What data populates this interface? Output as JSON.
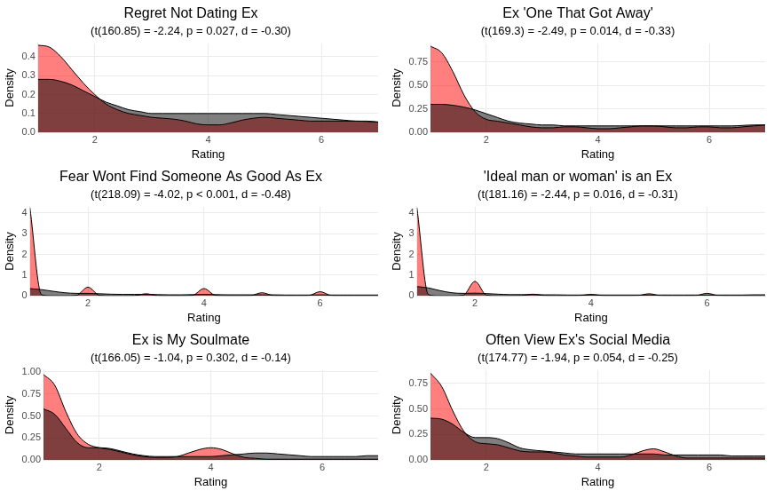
{
  "chart_data": [
    {
      "type": "area",
      "title": "Regret Not Dating Ex",
      "subtitle": "(t(160.85) = -2.24, p = 0.027, d = -0.30)",
      "x_label": "Rating",
      "y_label": "Density",
      "x": [
        1,
        1.2,
        1.4,
        1.6,
        1.8,
        2,
        2.2,
        2.4,
        2.6,
        2.8,
        3,
        3.2,
        3.4,
        3.6,
        3.8,
        4,
        4.2,
        4.4,
        4.6,
        4.8,
        5,
        5.2,
        5.4,
        5.6,
        5.8,
        6,
        6.2,
        6.4,
        6.6,
        6.8,
        7
      ],
      "series": [
        {
          "color": "#ff0000",
          "values": [
            0.46,
            0.45,
            0.4,
            0.33,
            0.26,
            0.2,
            0.15,
            0.12,
            0.1,
            0.09,
            0.08,
            0.075,
            0.07,
            0.06,
            0.045,
            0.04,
            0.04,
            0.05,
            0.065,
            0.075,
            0.08,
            0.075,
            0.07,
            0.065,
            0.06,
            0.06,
            0.06,
            0.06,
            0.06,
            0.058,
            0.055
          ]
        },
        {
          "color": "#000000",
          "values": [
            0.28,
            0.28,
            0.27,
            0.25,
            0.22,
            0.19,
            0.16,
            0.14,
            0.12,
            0.11,
            0.1,
            0.1,
            0.1,
            0.1,
            0.1,
            0.1,
            0.1,
            0.1,
            0.1,
            0.1,
            0.1,
            0.095,
            0.09,
            0.085,
            0.08,
            0.075,
            0.07,
            0.065,
            0.06,
            0.06,
            0.055
          ]
        }
      ],
      "xlim": [
        1,
        7
      ],
      "ylim": [
        0,
        0.47
      ],
      "xticks": [
        2,
        4,
        6
      ],
      "yticks": [
        {
          "value": 0,
          "label": "0.0"
        },
        0.1,
        0.2,
        0.3,
        0.4
      ],
      "grid": true
    },
    {
      "type": "area",
      "title": "Ex 'One That Got Away'",
      "subtitle": "(t(169.3) = -2.49, p = 0.014, d = -0.33)",
      "x_label": "Rating",
      "y_label": "Density",
      "x": [
        1,
        1.2,
        1.4,
        1.6,
        1.8,
        2,
        2.2,
        2.4,
        2.6,
        2.8,
        3,
        3.2,
        3.4,
        3.6,
        3.8,
        4,
        4.2,
        4.4,
        4.6,
        4.8,
        5,
        5.2,
        5.4,
        5.6,
        5.8,
        6,
        6.2,
        6.4,
        6.6,
        6.8,
        7
      ],
      "series": [
        {
          "color": "#ff0000",
          "values": [
            0.92,
            0.85,
            0.65,
            0.4,
            0.22,
            0.14,
            0.12,
            0.1,
            0.08,
            0.06,
            0.05,
            0.05,
            0.06,
            0.06,
            0.05,
            0.04,
            0.04,
            0.05,
            0.06,
            0.07,
            0.07,
            0.06,
            0.05,
            0.05,
            0.06,
            0.06,
            0.05,
            0.05,
            0.06,
            0.07,
            0.08
          ]
        },
        {
          "color": "#000000",
          "values": [
            0.3,
            0.3,
            0.29,
            0.27,
            0.24,
            0.2,
            0.16,
            0.12,
            0.1,
            0.09,
            0.08,
            0.08,
            0.07,
            0.07,
            0.07,
            0.07,
            0.07,
            0.07,
            0.07,
            0.07,
            0.07,
            0.07,
            0.07,
            0.07,
            0.07,
            0.07,
            0.07,
            0.07,
            0.075,
            0.08,
            0.08
          ]
        }
      ],
      "xlim": [
        1,
        7
      ],
      "ylim": [
        0,
        0.95
      ],
      "xticks": [
        2,
        4,
        6
      ],
      "yticks": [
        {
          "value": 0,
          "label": "0.00"
        },
        0.25,
        {
          "value": 0.5,
          "label": "0.50"
        },
        0.75
      ],
      "grid": true
    },
    {
      "type": "area",
      "title": "Fear Wont Find Someone As Good As Ex",
      "subtitle": "(t(218.09) = -4.02, p < 0.001, d = -0.48)",
      "x_label": "Rating",
      "y_label": "Density",
      "x": [
        1,
        1.2,
        1.4,
        1.6,
        1.8,
        2,
        2.2,
        2.4,
        2.6,
        2.8,
        3,
        3.2,
        3.4,
        3.6,
        3.8,
        4,
        4.2,
        4.4,
        4.6,
        4.8,
        5,
        5.2,
        5.4,
        5.6,
        5.8,
        6,
        6.2,
        6.4,
        6.6,
        6.8,
        7
      ],
      "series": [
        {
          "color": "#ff0000",
          "values": [
            4.25,
            0.05,
            0,
            0,
            0.02,
            0.42,
            0.02,
            0,
            0,
            0.01,
            0.1,
            0.01,
            0,
            0,
            0.02,
            0.35,
            0.02,
            0,
            0,
            0.01,
            0.15,
            0.01,
            0,
            0,
            0.01,
            0.2,
            0.01,
            0,
            0,
            0,
            0
          ]
        },
        {
          "color": "#000000",
          "values": [
            0.35,
            0.3,
            0.22,
            0.15,
            0.12,
            0.12,
            0.1,
            0.08,
            0.07,
            0.07,
            0.07,
            0.06,
            0.05,
            0.05,
            0.06,
            0.07,
            0.06,
            0.05,
            0.05,
            0.05,
            0.05,
            0.05,
            0.04,
            0.04,
            0.04,
            0.05,
            0.04,
            0.04,
            0.04,
            0.04,
            0.04
          ]
        }
      ],
      "xlim": [
        1,
        7
      ],
      "ylim": [
        0,
        4.3
      ],
      "xticks": [
        2,
        4,
        6
      ],
      "yticks": [
        0,
        1,
        2,
        3,
        4
      ],
      "grid": true
    },
    {
      "type": "area",
      "title": "'Ideal man or woman' is an Ex",
      "subtitle": "(t(181.16) = -2.44, p = 0.016, d = -0.31)",
      "x_label": "Rating",
      "y_label": "Density",
      "x": [
        1,
        1.2,
        1.4,
        1.6,
        1.8,
        2,
        2.2,
        2.4,
        2.6,
        2.8,
        3,
        3.2,
        3.4,
        3.6,
        3.8,
        4,
        4.2,
        4.4,
        4.6,
        4.8,
        5,
        5.2,
        5.4,
        5.6,
        5.8,
        6,
        6.2,
        6.4,
        6.6,
        6.8,
        7
      ],
      "series": [
        {
          "color": "#ff0000",
          "values": [
            4.25,
            0.05,
            0,
            0,
            0.03,
            0.7,
            0.03,
            0,
            0,
            0.01,
            0.08,
            0.01,
            0,
            0,
            0.01,
            0.07,
            0.01,
            0,
            0,
            0.01,
            0.1,
            0.01,
            0,
            0,
            0.01,
            0.12,
            0.01,
            0,
            0,
            0,
            0
          ]
        },
        {
          "color": "#000000",
          "values": [
            0.45,
            0.38,
            0.25,
            0.15,
            0.12,
            0.13,
            0.11,
            0.08,
            0.06,
            0.06,
            0.06,
            0.05,
            0.05,
            0.04,
            0.04,
            0.05,
            0.04,
            0.04,
            0.04,
            0.04,
            0.04,
            0.04,
            0.04,
            0.04,
            0.04,
            0.04,
            0.04,
            0.04,
            0.04,
            0.05,
            0.05
          ]
        }
      ],
      "xlim": [
        1,
        7
      ],
      "ylim": [
        0,
        4.3
      ],
      "xticks": [
        2,
        4,
        6
      ],
      "yticks": [
        0,
        1,
        2,
        3,
        4
      ],
      "grid": true
    },
    {
      "type": "area",
      "title": "Ex is My Soulmate",
      "subtitle": "(t(166.05) = -1.04, p = 0.302, d = -0.14)",
      "x_label": "Rating",
      "y_label": "Density",
      "x": [
        1,
        1.2,
        1.4,
        1.6,
        1.8,
        2,
        2.2,
        2.4,
        2.6,
        2.8,
        3,
        3.2,
        3.4,
        3.6,
        3.8,
        4,
        4.2,
        4.4,
        4.6,
        4.8,
        5,
        5.2,
        5.4,
        5.6,
        5.8,
        6,
        6.2,
        6.4,
        6.6,
        6.8,
        7
      ],
      "series": [
        {
          "color": "#ff0000",
          "values": [
            0.97,
            0.85,
            0.55,
            0.3,
            0.18,
            0.14,
            0.12,
            0.09,
            0.06,
            0.04,
            0.03,
            0.03,
            0.04,
            0.08,
            0.12,
            0.14,
            0.12,
            0.07,
            0.03,
            0.02,
            0.01,
            0.01,
            0.01,
            0.01,
            0.01,
            0.01,
            0.01,
            0.01,
            0.01,
            0.01,
            0.01
          ]
        },
        {
          "color": "#000000",
          "values": [
            0.58,
            0.52,
            0.36,
            0.2,
            0.14,
            0.14,
            0.13,
            0.1,
            0.07,
            0.05,
            0.04,
            0.04,
            0.04,
            0.04,
            0.04,
            0.04,
            0.05,
            0.06,
            0.07,
            0.08,
            0.08,
            0.07,
            0.06,
            0.05,
            0.04,
            0.04,
            0.04,
            0.04,
            0.04,
            0.05,
            0.05
          ]
        }
      ],
      "xlim": [
        1,
        7
      ],
      "ylim": [
        0,
        1.02
      ],
      "xticks": [
        2,
        4,
        6
      ],
      "yticks": [
        {
          "value": 0,
          "label": "0.00"
        },
        0.25,
        {
          "value": 0.5,
          "label": "0.50"
        },
        0.75,
        {
          "value": 1,
          "label": "1.00"
        }
      ],
      "grid": true
    },
    {
      "type": "area",
      "title": "Often View Ex's Social Media",
      "subtitle": "(t(174.77) = -1.94, p = 0.054, d = -0.25)",
      "x_label": "Rating",
      "y_label": "Density",
      "x": [
        1,
        1.2,
        1.4,
        1.6,
        1.8,
        2,
        2.2,
        2.4,
        2.6,
        2.8,
        3,
        3.2,
        3.4,
        3.6,
        3.8,
        4,
        4.2,
        4.4,
        4.6,
        4.8,
        5,
        5.2,
        5.4,
        5.6,
        5.8,
        6,
        6.2,
        6.4,
        6.6,
        6.8,
        7
      ],
      "series": [
        {
          "color": "#ff0000",
          "values": [
            0.85,
            0.72,
            0.48,
            0.28,
            0.18,
            0.16,
            0.15,
            0.12,
            0.09,
            0.08,
            0.08,
            0.07,
            0.05,
            0.04,
            0.03,
            0.03,
            0.03,
            0.03,
            0.05,
            0.09,
            0.11,
            0.08,
            0.04,
            0.02,
            0.02,
            0.02,
            0.02,
            0.02,
            0.02,
            0.02,
            0.02
          ]
        },
        {
          "color": "#000000",
          "values": [
            0.41,
            0.4,
            0.35,
            0.27,
            0.22,
            0.22,
            0.21,
            0.17,
            0.12,
            0.1,
            0.09,
            0.08,
            0.07,
            0.06,
            0.06,
            0.06,
            0.06,
            0.06,
            0.06,
            0.06,
            0.06,
            0.05,
            0.05,
            0.05,
            0.05,
            0.05,
            0.05,
            0.04,
            0.04,
            0.04,
            0.04
          ]
        }
      ],
      "xlim": [
        1,
        7
      ],
      "ylim": [
        0,
        0.88
      ],
      "xticks": [
        2,
        4,
        6
      ],
      "yticks": [
        {
          "value": 0,
          "label": "0.00"
        },
        0.25,
        {
          "value": 0.5,
          "label": "0.50"
        },
        0.75
      ],
      "grid": true
    }
  ]
}
